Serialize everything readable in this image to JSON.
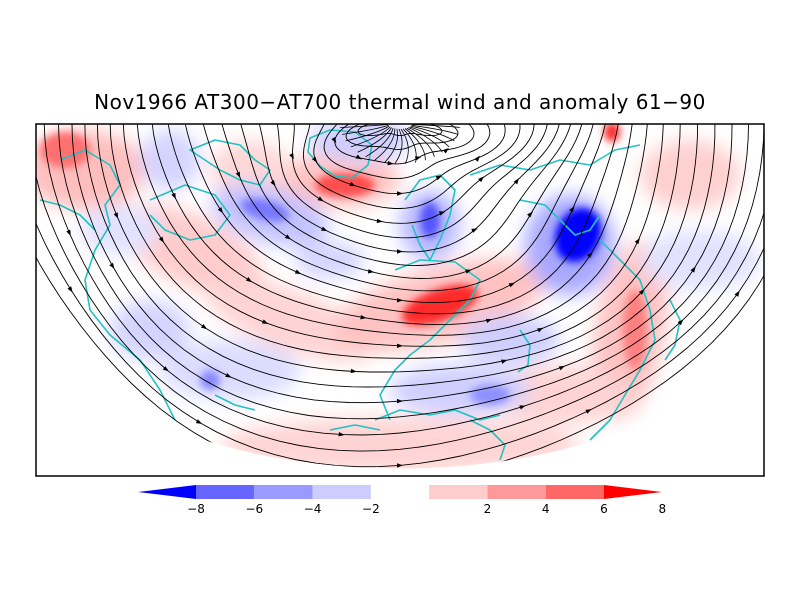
{
  "title": "Nov1966 AT300−AT700 thermal wind and anomaly 61−90",
  "colorbar": {
    "tick_labels": [
      "−8",
      "−6",
      "−4",
      "−2",
      "2",
      "4",
      "6",
      "8"
    ],
    "colors": [
      "#0000ff",
      "#6666ff",
      "#9999ff",
      "#ccccff",
      "#ffffff",
      "#ffcccc",
      "#ff9999",
      "#ff6666",
      "#ff0000"
    ]
  },
  "colors": {
    "coastline": "#22c2c2",
    "streamline": "#000000",
    "positive_anomaly": "#ff6060",
    "negative_anomaly": "#6060ff"
  }
}
